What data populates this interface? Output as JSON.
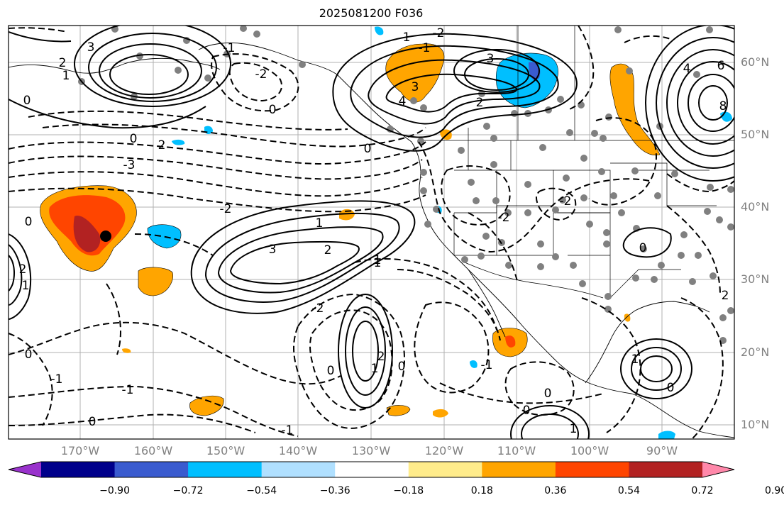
{
  "title": "2025081200 F036",
  "lat_labels": [
    "60°N",
    "50°N",
    "40°N",
    "30°N",
    "20°N",
    "10°N"
  ],
  "lon_labels": [
    "170°W",
    "160°W",
    "150°W",
    "140°W",
    "130°W",
    "120°W",
    "110°W",
    "100°W",
    "90°W"
  ],
  "colorbar": {
    "tick_labels": [
      "−0.90",
      "−0.72",
      "−0.54",
      "−0.36",
      "−0.18",
      "0.18",
      "0.36",
      "0.54",
      "0.72",
      "0.90"
    ],
    "colors": [
      "#9932cc",
      "#00008b",
      "#3a5bcf",
      "#00bfff",
      "#b0e0ff",
      "#ffffff",
      "#ffec8b",
      "#ffa500",
      "#ff4500",
      "#b22222",
      "#ff88aa"
    ]
  },
  "contour_labels": [
    "3",
    "2",
    "1",
    "0",
    "-1",
    "-2",
    "-3",
    "3",
    "4",
    "2",
    "1",
    "0",
    "-1",
    "-2",
    "6",
    "4",
    "8",
    "3",
    "2",
    "1",
    "0",
    "-2",
    "-2",
    "1",
    "2",
    "0",
    "-2",
    "3",
    "2",
    "1",
    "0",
    "-2",
    "0",
    "-1",
    "0",
    "-1",
    "0",
    "2",
    "1",
    "0",
    "0",
    "-1",
    "1",
    "-1",
    "0",
    "0",
    "1",
    "0",
    "1",
    "2"
  ]
}
